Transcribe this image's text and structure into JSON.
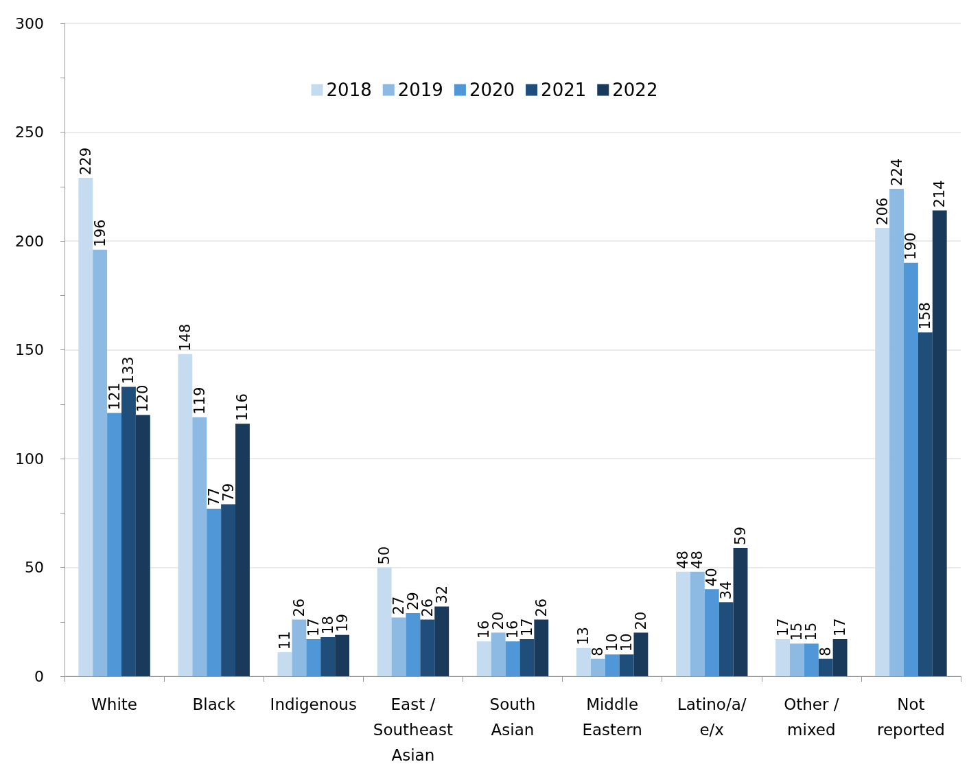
{
  "chart_data": {
    "type": "bar",
    "categories": [
      "White",
      "Black",
      "Indigenous",
      "East /\nSoutheast\nAsian",
      "South\nAsian",
      "Middle\nEastern",
      "Latino/a/\ne/x",
      "Other /\nmixed",
      "Not\nreported"
    ],
    "series": [
      {
        "name": "2018",
        "color": "#c5dcf0",
        "values": [
          229,
          148,
          11,
          50,
          16,
          13,
          48,
          17,
          206
        ]
      },
      {
        "name": "2019",
        "color": "#8dbae3",
        "values": [
          196,
          119,
          26,
          27,
          20,
          8,
          48,
          15,
          224
        ]
      },
      {
        "name": "2020",
        "color": "#4f97d6",
        "values": [
          121,
          77,
          17,
          29,
          16,
          10,
          40,
          15,
          190
        ]
      },
      {
        "name": "2021",
        "color": "#1f4e7a",
        "values": [
          133,
          79,
          18,
          26,
          17,
          10,
          34,
          8,
          158
        ]
      },
      {
        "name": "2022",
        "color": "#1a3a5c",
        "values": [
          120,
          116,
          19,
          32,
          26,
          20,
          59,
          17,
          214
        ]
      }
    ],
    "ylim": [
      0,
      300
    ],
    "yticks": [
      0,
      50,
      100,
      150,
      200,
      250,
      300
    ],
    "grid": "y",
    "legend": "top",
    "data_labels": true
  }
}
